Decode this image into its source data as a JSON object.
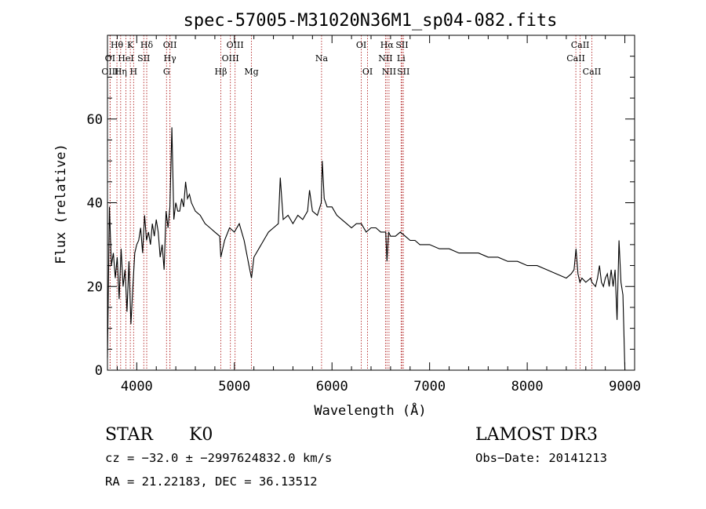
{
  "chart_data": {
    "type": "line",
    "title": "spec-57005-M31020N36M1_sp04-082.fits",
    "xlabel": "Wavelength (Å)",
    "ylabel": "Flux (relative)",
    "xlim": [
      3700,
      9100
    ],
    "ylim": [
      0,
      80
    ],
    "xticks": [
      4000,
      5000,
      6000,
      7000,
      8000,
      9000
    ],
    "yticks": [
      0,
      20,
      40,
      60
    ],
    "series": [
      {
        "name": "flux",
        "x": [
          3700,
          3720,
          3740,
          3760,
          3780,
          3800,
          3820,
          3840,
          3860,
          3880,
          3900,
          3920,
          3940,
          3960,
          3980,
          4000,
          4020,
          4040,
          4060,
          4080,
          4100,
          4120,
          4140,
          4160,
          4180,
          4200,
          4220,
          4240,
          4260,
          4280,
          4300,
          4320,
          4340,
          4360,
          4380,
          4400,
          4420,
          4440,
          4460,
          4480,
          4500,
          4520,
          4540,
          4560,
          4580,
          4600,
          4650,
          4700,
          4750,
          4800,
          4850,
          4861,
          4900,
          4950,
          5000,
          5050,
          5100,
          5150,
          5175,
          5200,
          5250,
          5300,
          5350,
          5400,
          5450,
          5470,
          5500,
          5550,
          5600,
          5650,
          5700,
          5750,
          5770,
          5800,
          5850,
          5890,
          5900,
          5920,
          5950,
          6000,
          6050,
          6100,
          6150,
          6200,
          6250,
          6300,
          6350,
          6400,
          6450,
          6500,
          6550,
          6563,
          6580,
          6600,
          6650,
          6700,
          6750,
          6800,
          6850,
          6900,
          6950,
          7000,
          7100,
          7200,
          7300,
          7400,
          7500,
          7600,
          7700,
          7800,
          7900,
          8000,
          8100,
          8200,
          8300,
          8400,
          8450,
          8480,
          8500,
          8520,
          8540,
          8560,
          8600,
          8650,
          8662,
          8700,
          8720,
          8740,
          8760,
          8780,
          8800,
          8820,
          8840,
          8860,
          8880,
          8900,
          8920,
          8940,
          8960,
          8980,
          9000
        ],
        "values": [
          3,
          39,
          25,
          28,
          22,
          27,
          17,
          29,
          20,
          24,
          14,
          26,
          11,
          20,
          28,
          30,
          31,
          34,
          28,
          37,
          31,
          33,
          30,
          35,
          32,
          36,
          33,
          27,
          30,
          24,
          38,
          34,
          39,
          58,
          36,
          40,
          38,
          38,
          41,
          39,
          45,
          41,
          42,
          40,
          39,
          38,
          37,
          35,
          34,
          33,
          32,
          27,
          31,
          34,
          33,
          35,
          31,
          25,
          22,
          27,
          29,
          31,
          33,
          34,
          35,
          46,
          36,
          37,
          35,
          37,
          36,
          38,
          43,
          38,
          37,
          40,
          50,
          41,
          39,
          39,
          37,
          36,
          35,
          34,
          35,
          35,
          33,
          34,
          34,
          33,
          33,
          26,
          33,
          32,
          32,
          33,
          32,
          31,
          31,
          30,
          30,
          30,
          29,
          29,
          28,
          28,
          28,
          27,
          27,
          26,
          26,
          25,
          25,
          24,
          23,
          22,
          23,
          24,
          29,
          23,
          21,
          22,
          21,
          22,
          21,
          20,
          22,
          25,
          21,
          20,
          22,
          23,
          20,
          24,
          20,
          24,
          12,
          31,
          21,
          18,
          0
        ],
        "color": "#000000"
      }
    ],
    "spectral_lines": [
      {
        "label": "Hθ",
        "x": 3797,
        "row": 1
      },
      {
        "label": "K",
        "x": 3934,
        "row": 1
      },
      {
        "label": "Hδ",
        "x": 4102,
        "row": 1
      },
      {
        "label": "OII",
        "x": 4340,
        "row": 1
      },
      {
        "label": "OIII",
        "x": 5007,
        "row": 1
      },
      {
        "label": "OI",
        "x": 6300,
        "row": 1
      },
      {
        "label": "Hα",
        "x": 6563,
        "row": 1
      },
      {
        "label": "SII",
        "x": 6717,
        "row": 1
      },
      {
        "label": "CaII",
        "x": 8542,
        "row": 1
      },
      {
        "label": "OI",
        "x": 3727,
        "row": 2
      },
      {
        "label": "HeI",
        "x": 3889,
        "row": 2
      },
      {
        "label": "SII",
        "x": 4072,
        "row": 2
      },
      {
        "label": "Hγ",
        "x": 4340,
        "row": 2
      },
      {
        "label": "OIII",
        "x": 4959,
        "row": 2
      },
      {
        "label": "Na",
        "x": 5893,
        "row": 2
      },
      {
        "label": "NII",
        "x": 6548,
        "row": 2
      },
      {
        "label": "Li",
        "x": 6708,
        "row": 2
      },
      {
        "label": "CaII",
        "x": 8498,
        "row": 2
      },
      {
        "label": "OIII",
        "x": 3727,
        "row": 3
      },
      {
        "label": "Hη",
        "x": 3835,
        "row": 3
      },
      {
        "label": "H",
        "x": 3968,
        "row": 3
      },
      {
        "label": "G",
        "x": 4305,
        "row": 3
      },
      {
        "label": "Hβ",
        "x": 4861,
        "row": 3
      },
      {
        "label": "Mg",
        "x": 5175,
        "row": 3
      },
      {
        "label": "OI",
        "x": 6364,
        "row": 3
      },
      {
        "label": "NII",
        "x": 6584,
        "row": 3
      },
      {
        "label": "SII",
        "x": 6731,
        "row": 3
      },
      {
        "label": "CaII",
        "x": 8662,
        "row": 3
      }
    ],
    "line_color": "#b22222"
  },
  "info": {
    "class": "STAR",
    "subclass": "K0",
    "survey": "LAMOST DR3",
    "cz": "cz = −32.0 ± −2997624832.0 km/s",
    "obs_date": "Obs−Date: 20141213",
    "radec": "RA =  21.22183, DEC =  36.13512"
  }
}
